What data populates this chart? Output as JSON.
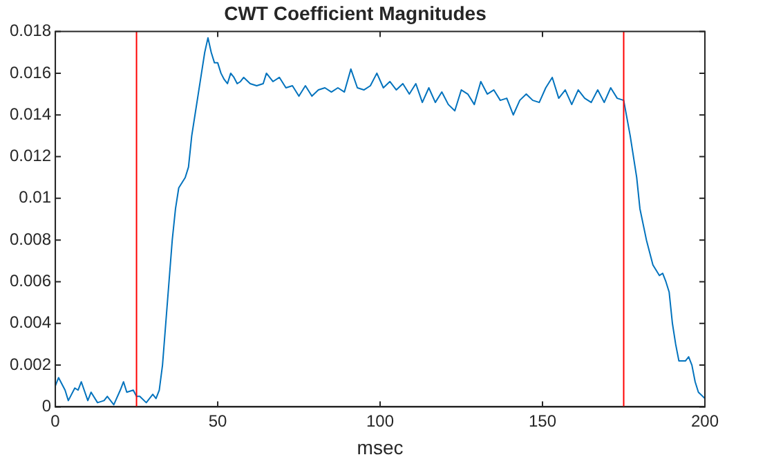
{
  "chart_data": {
    "type": "line",
    "title": "CWT Coefficient Magnitudes",
    "xlabel": "msec",
    "x": [
      0,
      1,
      3,
      4,
      6,
      7,
      8,
      10,
      11,
      13,
      15,
      16,
      18,
      20,
      21,
      22,
      24,
      25,
      26,
      28,
      30,
      31,
      32,
      33,
      34,
      35,
      36,
      37,
      38,
      40,
      41,
      42,
      43,
      44,
      45,
      46,
      47,
      48,
      49,
      50,
      51,
      52,
      53,
      54,
      55,
      56,
      57,
      58,
      60,
      62,
      64,
      65,
      67,
      69,
      71,
      73,
      75,
      77,
      79,
      81,
      83,
      85,
      87,
      89,
      91,
      93,
      95,
      97,
      99,
      101,
      103,
      105,
      107,
      109,
      111,
      113,
      115,
      117,
      119,
      121,
      123,
      125,
      127,
      129,
      131,
      133,
      135,
      137,
      139,
      141,
      143,
      145,
      147,
      149,
      151,
      153,
      155,
      157,
      159,
      161,
      163,
      165,
      167,
      169,
      171,
      173,
      175,
      177,
      179,
      180,
      182,
      184,
      186,
      187,
      188,
      189,
      190,
      191,
      192,
      194,
      195,
      196,
      197,
      198,
      200
    ],
    "series": [
      {
        "color": "#0072bd",
        "values": [
          0.001,
          0.0014,
          0.0008,
          0.0003,
          0.0009,
          0.0008,
          0.0012,
          0.0003,
          0.0007,
          0.0002,
          0.0003,
          0.0005,
          0.0001,
          0.0008,
          0.0012,
          0.0007,
          0.0008,
          0.0005,
          0.0005,
          0.0002,
          0.0006,
          0.0004,
          0.0008,
          0.002,
          0.004,
          0.006,
          0.008,
          0.0095,
          0.0105,
          0.011,
          0.0115,
          0.013,
          0.014,
          0.015,
          0.016,
          0.017,
          0.0177,
          0.017,
          0.0165,
          0.0165,
          0.016,
          0.0157,
          0.0155,
          0.016,
          0.0158,
          0.0155,
          0.0156,
          0.0158,
          0.0155,
          0.0154,
          0.0155,
          0.016,
          0.0156,
          0.0158,
          0.0153,
          0.0154,
          0.0149,
          0.0154,
          0.0149,
          0.0152,
          0.0153,
          0.0151,
          0.0153,
          0.0151,
          0.0162,
          0.0153,
          0.0152,
          0.0154,
          0.016,
          0.0153,
          0.0156,
          0.0152,
          0.0155,
          0.015,
          0.0155,
          0.0146,
          0.0153,
          0.0146,
          0.0151,
          0.0145,
          0.0142,
          0.0152,
          0.015,
          0.0145,
          0.0156,
          0.015,
          0.0152,
          0.0147,
          0.0148,
          0.014,
          0.0147,
          0.015,
          0.0147,
          0.0146,
          0.0153,
          0.0158,
          0.0148,
          0.0152,
          0.0145,
          0.0152,
          0.0148,
          0.0146,
          0.0152,
          0.0146,
          0.0153,
          0.0148,
          0.0147,
          0.013,
          0.011,
          0.0095,
          0.008,
          0.0068,
          0.0063,
          0.0064,
          0.006,
          0.0055,
          0.004,
          0.003,
          0.0022,
          0.0022,
          0.0024,
          0.002,
          0.0012,
          0.0007,
          0.0004
        ]
      }
    ],
    "xlim": [
      0,
      200
    ],
    "xticks": [
      0,
      50,
      100,
      150,
      200
    ],
    "ylim": [
      0,
      0.018
    ],
    "yticks": [
      {
        "value": 0,
        "label": "0"
      },
      {
        "value": 0.002,
        "label": "0.002"
      },
      {
        "value": 0.004,
        "label": "0.004"
      },
      {
        "value": 0.006,
        "label": "0.006"
      },
      {
        "value": 0.008,
        "label": "0.008"
      },
      {
        "value": 0.01,
        "label": "0.01"
      },
      {
        "value": 0.012,
        "label": "0.012"
      },
      {
        "value": 0.014,
        "label": "0.014"
      },
      {
        "value": 0.016,
        "label": "0.016"
      },
      {
        "value": 0.018,
        "label": "0.018"
      }
    ],
    "ref_lines": [
      {
        "axis": "x",
        "value": 25,
        "color": "#ff0000"
      },
      {
        "axis": "x",
        "value": 175,
        "color": "#ff0000"
      }
    ],
    "grid": false,
    "legend": false,
    "marker": "none",
    "line_style": "solid"
  }
}
